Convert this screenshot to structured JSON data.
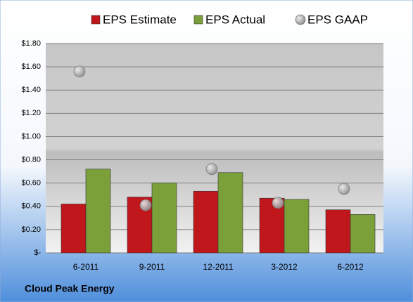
{
  "chart_data": {
    "type": "bar",
    "categories": [
      "6-2011",
      "9-2011",
      "12-2011",
      "3-2012",
      "6-2012"
    ],
    "series": [
      {
        "name": "EPS Estimate",
        "color": "#c0171c",
        "values": [
          0.42,
          0.48,
          0.53,
          0.47,
          0.37
        ]
      },
      {
        "name": "EPS Actual",
        "color": "#7ba03a",
        "values": [
          0.72,
          0.6,
          0.69,
          0.46,
          0.33
        ]
      },
      {
        "name": "EPS GAAP",
        "color": "#9a9a9a",
        "marker": "circle",
        "values": [
          1.56,
          0.41,
          0.72,
          0.43,
          0.55
        ]
      }
    ],
    "ylim": [
      0,
      1.8
    ],
    "yticks": [
      {
        "value": 0,
        "label": "$-"
      },
      {
        "value": 0.2,
        "label": "$0.20"
      },
      {
        "value": 0.4,
        "label": "$0.40"
      },
      {
        "value": 0.6,
        "label": "$0.60"
      },
      {
        "value": 0.8,
        "label": "$0.80"
      },
      {
        "value": 1.0,
        "label": "$1.00"
      },
      {
        "value": 1.2,
        "label": "$1.20"
      },
      {
        "value": 1.4,
        "label": "$1.40"
      },
      {
        "value": 1.6,
        "label": "$1.60"
      },
      {
        "value": 1.8,
        "label": "$1.80"
      }
    ],
    "grid": true,
    "footer": "Cloud Peak Energy"
  }
}
